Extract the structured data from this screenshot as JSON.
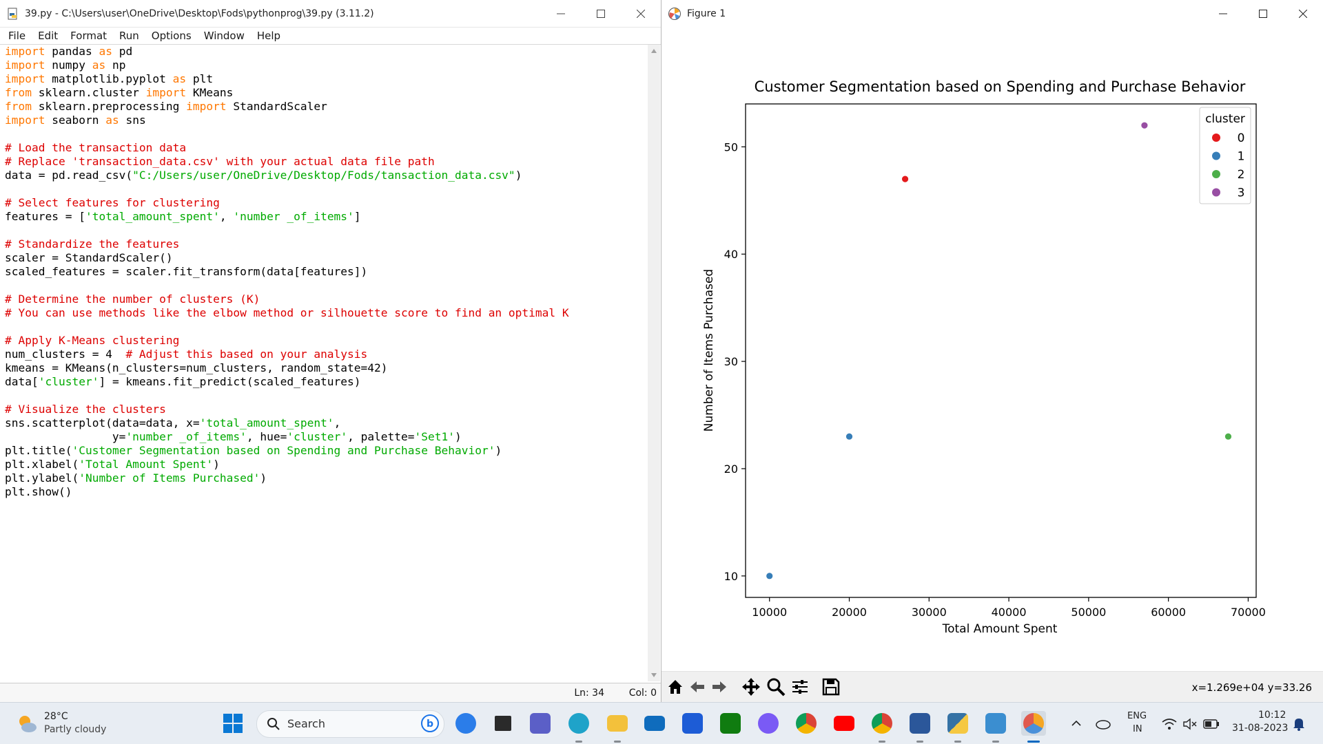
{
  "idle": {
    "title": "39.py - C:\\Users\\user\\OneDrive\\Desktop\\Fods\\pythonprog\\39.py (3.11.2)",
    "menu": [
      "File",
      "Edit",
      "Format",
      "Run",
      "Options",
      "Window",
      "Help"
    ],
    "code": [
      [
        [
          "kw",
          "import"
        ],
        [
          "plain",
          " pandas "
        ],
        [
          "kw",
          "as"
        ],
        [
          "plain",
          " pd"
        ]
      ],
      [
        [
          "kw",
          "import"
        ],
        [
          "plain",
          " numpy "
        ],
        [
          "kw",
          "as"
        ],
        [
          "plain",
          " np"
        ]
      ],
      [
        [
          "kw",
          "import"
        ],
        [
          "plain",
          " matplotlib.pyplot "
        ],
        [
          "kw",
          "as"
        ],
        [
          "plain",
          " plt"
        ]
      ],
      [
        [
          "kw",
          "from"
        ],
        [
          "plain",
          " sklearn.cluster "
        ],
        [
          "kw",
          "import"
        ],
        [
          "plain",
          " KMeans"
        ]
      ],
      [
        [
          "kw",
          "from"
        ],
        [
          "plain",
          " sklearn.preprocessing "
        ],
        [
          "kw",
          "import"
        ],
        [
          "plain",
          " StandardScaler"
        ]
      ],
      [
        [
          "kw",
          "import"
        ],
        [
          "plain",
          " seaborn "
        ],
        [
          "kw",
          "as"
        ],
        [
          "plain",
          " sns"
        ]
      ],
      [],
      [
        [
          "com",
          "# Load the transaction data"
        ]
      ],
      [
        [
          "com",
          "# Replace 'transaction_data.csv' with your actual data file path"
        ]
      ],
      [
        [
          "plain",
          "data = pd.read_csv("
        ],
        [
          "str",
          "\"C:/Users/user/OneDrive/Desktop/Fods/tansaction_data.csv\""
        ],
        [
          "plain",
          ")"
        ]
      ],
      [],
      [
        [
          "com",
          "# Select features for clustering"
        ]
      ],
      [
        [
          "plain",
          "features = ["
        ],
        [
          "str",
          "'total_amount_spent'"
        ],
        [
          "plain",
          ", "
        ],
        [
          "str",
          "'number _of_items'"
        ],
        [
          "plain",
          "]"
        ]
      ],
      [],
      [
        [
          "com",
          "# Standardize the features"
        ]
      ],
      [
        [
          "plain",
          "scaler = StandardScaler()"
        ]
      ],
      [
        [
          "plain",
          "scaled_features = scaler.fit_transform(data[features])"
        ]
      ],
      [],
      [
        [
          "com",
          "# Determine the number of clusters (K)"
        ]
      ],
      [
        [
          "com",
          "# You can use methods like the elbow method or silhouette score to find an optimal K"
        ]
      ],
      [],
      [
        [
          "com",
          "# Apply K-Means clustering"
        ]
      ],
      [
        [
          "plain",
          "num_clusters = 4  "
        ],
        [
          "com",
          "# Adjust this based on your analysis"
        ]
      ],
      [
        [
          "plain",
          "kmeans = KMeans(n_clusters=num_clusters, random_state=42)"
        ]
      ],
      [
        [
          "plain",
          "data["
        ],
        [
          "str",
          "'cluster'"
        ],
        [
          "plain",
          "] = kmeans.fit_predict(scaled_features)"
        ]
      ],
      [],
      [
        [
          "com",
          "# Visualize the clusters"
        ]
      ],
      [
        [
          "plain",
          "sns.scatterplot(data=data, x="
        ],
        [
          "str",
          "'total_amount_spent'"
        ],
        [
          "plain",
          ","
        ]
      ],
      [
        [
          "plain",
          "                y="
        ],
        [
          "str",
          "'number _of_items'"
        ],
        [
          "plain",
          ", hue="
        ],
        [
          "str",
          "'cluster'"
        ],
        [
          "plain",
          ", palette="
        ],
        [
          "str",
          "'Set1'"
        ],
        [
          "plain",
          ")"
        ]
      ],
      [
        [
          "plain",
          "plt.title("
        ],
        [
          "str",
          "'Customer Segmentation based on Spending and Purchase Behavior'"
        ],
        [
          "plain",
          ")"
        ]
      ],
      [
        [
          "plain",
          "plt.xlabel("
        ],
        [
          "str",
          "'Total Amount Spent'"
        ],
        [
          "plain",
          ")"
        ]
      ],
      [
        [
          "plain",
          "plt.ylabel("
        ],
        [
          "str",
          "'Number of Items Purchased'"
        ],
        [
          "plain",
          ")"
        ]
      ],
      [
        [
          "plain",
          "plt.show()"
        ]
      ]
    ],
    "status": {
      "line": "Ln: 34",
      "col": "Col: 0"
    }
  },
  "figure": {
    "title": "Figure 1",
    "coords": "x=1.269e+04 y=33.26",
    "toolbar": [
      "home-icon",
      "back-arrow-icon",
      "forward-arrow-icon",
      "pan-icon",
      "zoom-icon",
      "configure-subplots-icon",
      "save-icon"
    ]
  },
  "chart_data": {
    "type": "scatter",
    "title": "Customer Segmentation based on Spending and Purchase Behavior",
    "xlabel": "Total Amount Spent",
    "ylabel": "Number of Items Purchased",
    "xlim": [
      7000,
      71000
    ],
    "ylim": [
      8,
      54
    ],
    "xticks": [
      10000,
      20000,
      30000,
      40000,
      50000,
      60000,
      70000
    ],
    "yticks": [
      10,
      20,
      30,
      40,
      50
    ],
    "grid": false,
    "legend": {
      "title": "cluster",
      "placement": "top-right",
      "entries": [
        "0",
        "1",
        "2",
        "3"
      ]
    },
    "series": [
      {
        "name": "0",
        "color": "#e41a1c",
        "points": [
          [
            27000,
            47
          ]
        ]
      },
      {
        "name": "1",
        "color": "#377eb8",
        "points": [
          [
            20000,
            23
          ],
          [
            10000,
            10
          ]
        ]
      },
      {
        "name": "2",
        "color": "#4daf4a",
        "points": [
          [
            67500,
            23
          ]
        ]
      },
      {
        "name": "3",
        "color": "#984ea3",
        "points": [
          [
            57000,
            52
          ]
        ]
      }
    ]
  },
  "taskbar": {
    "weather": {
      "temp": "28°C",
      "desc": "Partly cloudy"
    },
    "search_placeholder": "Search",
    "apps": [
      "start-icon",
      "search-icon",
      "copilot-preview-icon",
      "task-view-icon",
      "teams-chat-icon",
      "edge-icon",
      "file-explorer-icon",
      "mail-icon",
      "vscode-icon",
      "xbox-icon",
      "copilot-icon",
      "chrome-icon",
      "youtube-icon",
      "chrome-profile-icon",
      "word-icon",
      "python-icon",
      "paint-icon",
      "matplotlib-figure-icon"
    ],
    "lang": [
      "ENG",
      "IN"
    ],
    "time": "10:12",
    "date": "31-08-2023"
  }
}
